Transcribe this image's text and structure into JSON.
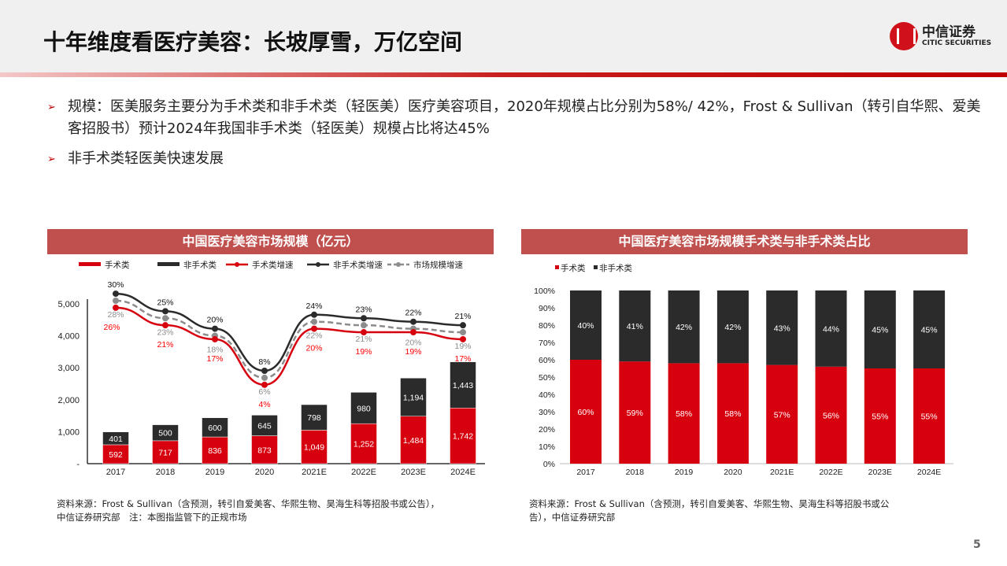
{
  "header": {
    "title": "十年维度看医疗美容：长坡厚雪，万亿空间",
    "logo_cn": "中信证券",
    "logo_en": "CITIC SECURITIES"
  },
  "bullets": [
    "规模：医美服务主要分为手术类和非手术类（轻医美）医疗美容项目，2020年规模占比分别为58%/ 42%，Frost & Sullivan（转引自华熙、爱美客招股书）预计2024年我国非手术类（轻医美）规模占比将达45%",
    "非手术类轻医美快速发展"
  ],
  "colors": {
    "red": "#d7000f",
    "dark": "#2b2b2b",
    "gray": "#8c8c8c",
    "panel": "#c0504d"
  },
  "chart_data": [
    {
      "type": "bar",
      "title": "中国医疗美容市场规模（亿元）",
      "stacked": true,
      "categories": [
        "2017",
        "2018",
        "2019",
        "2020",
        "2021E",
        "2022E",
        "2023E",
        "2024E"
      ],
      "ylim": [
        0,
        5000
      ],
      "yticks": [
        "-",
        "1,000",
        "2,000",
        "3,000",
        "4,000",
        "5,000"
      ],
      "legend_position": "top",
      "series": [
        {
          "name": "手术类",
          "kind": "bar",
          "color": "#d7000f",
          "values": [
            592,
            717,
            836,
            873,
            1049,
            1252,
            1484,
            1742
          ],
          "labels": [
            "592",
            "717",
            "836",
            "873",
            "1,049",
            "1,252",
            "1,484",
            "1,742"
          ]
        },
        {
          "name": "非手术类",
          "kind": "bar",
          "color": "#2b2b2b",
          "values": [
            401,
            500,
            600,
            645,
            798,
            980,
            1194,
            1443
          ],
          "labels": [
            "401",
            "500",
            "600",
            "645",
            "798",
            "980",
            "1,194",
            "1,443"
          ]
        },
        {
          "name": "手术类增速",
          "kind": "line",
          "color": "#d7000f",
          "values": [
            26,
            21,
            17,
            4,
            20,
            19,
            19,
            17
          ]
        },
        {
          "name": "非手术类增速",
          "kind": "line",
          "color": "#2b2b2b",
          "values": [
            30,
            25,
            20,
            8,
            24,
            23,
            22,
            21
          ]
        },
        {
          "name": "市场规模增速",
          "kind": "line",
          "dashed": true,
          "color": "#8c8c8c",
          "values": [
            28,
            23,
            18,
            6,
            22,
            21,
            20,
            19
          ]
        }
      ],
      "source": "资料来源：Frost & Sullivan（含预测，转引自爱美客、华熙生物、昊海生科等招股书或公告），",
      "source2": "中信证券研究部　注：本图指监管下的正规市场"
    },
    {
      "type": "bar",
      "title": "中国医疗美容市场规模手术类与非手术类占比",
      "stacked": true,
      "categories": [
        "2017",
        "2018",
        "2019",
        "2020",
        "2021E",
        "2022E",
        "2023E",
        "2024E"
      ],
      "ylim": [
        0,
        100
      ],
      "yticks": [
        "0%",
        "10%",
        "20%",
        "30%",
        "40%",
        "50%",
        "60%",
        "70%",
        "80%",
        "90%",
        "100%"
      ],
      "legend_position": "top-left",
      "series": [
        {
          "name": "手术类",
          "color": "#d7000f",
          "values": [
            60,
            59,
            58,
            58,
            57,
            56,
            55,
            55
          ]
        },
        {
          "name": "非手术类",
          "color": "#2b2b2b",
          "values": [
            40,
            41,
            42,
            42,
            43,
            44,
            45,
            45
          ]
        }
      ],
      "source": "资料来源：Frost & Sullivan（含预测，转引自爱美客、华熙生物、昊海生科等招股书或公",
      "source2": "告），中信证券研究部"
    }
  ],
  "page_number": "5"
}
